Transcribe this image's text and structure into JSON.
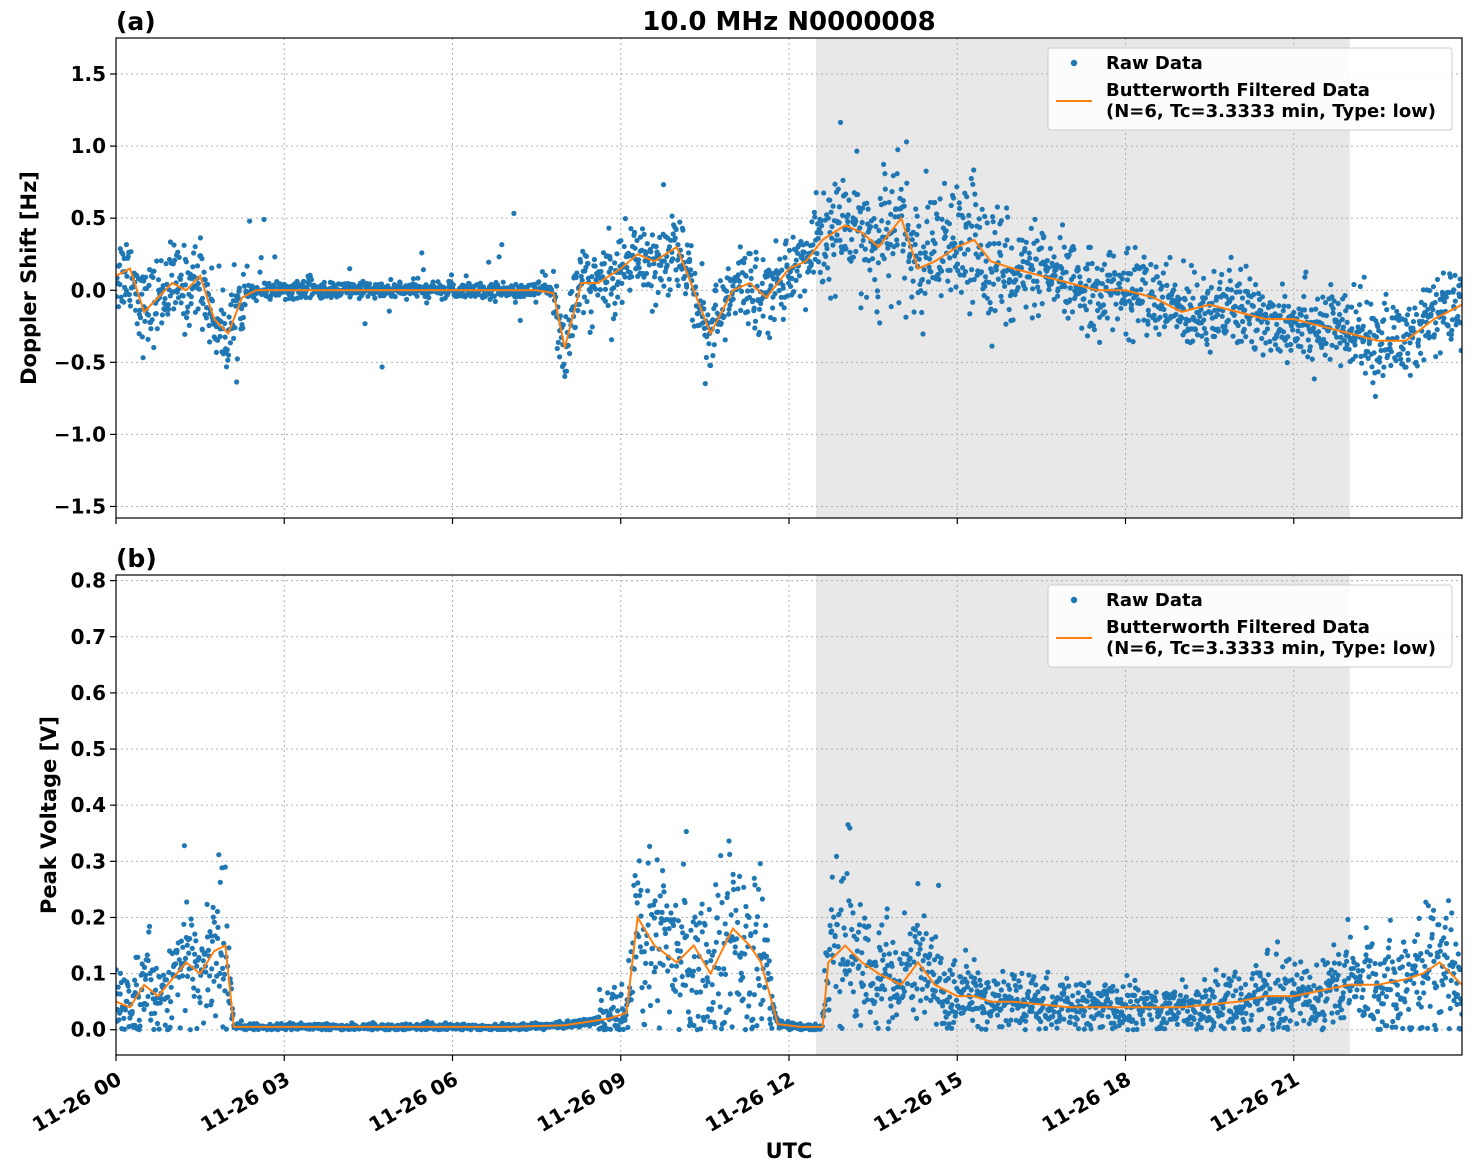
{
  "chart_data": [
    {
      "type": "scatter",
      "panel_label": "(a)",
      "title": "10.0 MHz N0000008",
      "ylabel": "Doppler Shift [Hz]",
      "xlabel": "",
      "xlim": [
        0,
        24
      ],
      "ylim": [
        -1.58,
        1.75
      ],
      "yticks": [
        -1.5,
        -1.0,
        -0.5,
        0.0,
        0.5,
        1.0,
        1.5
      ],
      "ytick_labels": [
        "−1.5",
        "−1.0",
        "−0.5",
        "0.0",
        "0.5",
        "1.0",
        "1.5"
      ],
      "xticks": [
        0,
        3,
        6,
        9,
        12,
        15,
        18,
        21
      ],
      "grid": true,
      "legend_position": "top-right",
      "shaded_region": [
        12.48,
        22.0
      ],
      "series": [
        {
          "name": "Raw Data",
          "style": "dots",
          "x": [
            0,
            0.25,
            0.5,
            0.75,
            1,
            1.25,
            1.5,
            1.75,
            2,
            2.25,
            2.5,
            3,
            4,
            5,
            6,
            7,
            7.5,
            7.8,
            8,
            8.3,
            8.6,
            9,
            9.3,
            9.6,
            10,
            10.3,
            10.6,
            11,
            11.3,
            11.6,
            12,
            12.3,
            12.6,
            13,
            13.3,
            13.6,
            14,
            14.3,
            14.6,
            15,
            15.3,
            15.6,
            16,
            16.5,
            17,
            17.5,
            18,
            18.5,
            19,
            19.5,
            20,
            20.5,
            21,
            21.5,
            22,
            22.5,
            23,
            23.5,
            24
          ],
          "y": [
            0.1,
            0.15,
            -0.15,
            -0.05,
            0.05,
            0.0,
            0.1,
            -0.2,
            -0.3,
            -0.05,
            0.0,
            0.0,
            0.0,
            0.0,
            0.0,
            0.0,
            0.0,
            -0.02,
            -0.4,
            0.05,
            0.05,
            0.15,
            0.25,
            0.2,
            0.3,
            0.0,
            -0.3,
            0.0,
            0.05,
            -0.05,
            0.15,
            0.2,
            0.35,
            0.45,
            0.4,
            0.3,
            0.5,
            0.15,
            0.2,
            0.3,
            0.35,
            0.2,
            0.15,
            0.1,
            0.05,
            0.0,
            0.0,
            -0.05,
            -0.15,
            -0.1,
            -0.15,
            -0.2,
            -0.2,
            -0.25,
            -0.3,
            -0.35,
            -0.35,
            -0.2,
            -0.1
          ]
        },
        {
          "name": "Butterworth Filtered Data\n(N=6, Tc=3.3333 min, Type: low)",
          "style": "line",
          "x": [
            0,
            0.25,
            0.5,
            0.75,
            1,
            1.25,
            1.5,
            1.75,
            2,
            2.25,
            2.5,
            3,
            4,
            5,
            6,
            7,
            7.5,
            7.8,
            8,
            8.3,
            8.6,
            9,
            9.3,
            9.6,
            10,
            10.3,
            10.6,
            11,
            11.3,
            11.6,
            12,
            12.3,
            12.6,
            13,
            13.3,
            13.6,
            14,
            14.3,
            14.6,
            15,
            15.3,
            15.6,
            16,
            16.5,
            17,
            17.5,
            18,
            18.5,
            19,
            19.5,
            20,
            20.5,
            21,
            21.5,
            22,
            22.5,
            23,
            23.5,
            24
          ],
          "y": [
            0.1,
            0.15,
            -0.15,
            -0.05,
            0.05,
            0.0,
            0.1,
            -0.2,
            -0.3,
            -0.05,
            0.0,
            0.0,
            0.0,
            0.0,
            0.0,
            0.0,
            0.0,
            -0.02,
            -0.4,
            0.05,
            0.05,
            0.15,
            0.25,
            0.2,
            0.3,
            0.0,
            -0.3,
            0.0,
            0.05,
            -0.05,
            0.15,
            0.2,
            0.35,
            0.45,
            0.4,
            0.3,
            0.5,
            0.15,
            0.2,
            0.3,
            0.35,
            0.2,
            0.15,
            0.1,
            0.05,
            0.0,
            0.0,
            -0.05,
            -0.15,
            -0.1,
            -0.15,
            -0.2,
            -0.2,
            -0.25,
            -0.3,
            -0.35,
            -0.35,
            -0.2,
            -0.1
          ]
        }
      ]
    },
    {
      "type": "scatter",
      "panel_label": "(b)",
      "title": "",
      "ylabel": "Peak Voltage [V]",
      "xlabel": "UTC",
      "xlim": [
        0,
        24
      ],
      "ylim": [
        -0.045,
        0.81
      ],
      "yticks": [
        0.0,
        0.1,
        0.2,
        0.3,
        0.4,
        0.5,
        0.6,
        0.7,
        0.8
      ],
      "ytick_labels": [
        "0.0",
        "0.1",
        "0.2",
        "0.3",
        "0.4",
        "0.5",
        "0.6",
        "0.7",
        "0.8"
      ],
      "xticks": [
        0,
        3,
        6,
        9,
        12,
        15,
        18,
        21
      ],
      "xtick_labels": [
        "11-26 00",
        "11-26 03",
        "11-26 06",
        "11-26 09",
        "11-26 12",
        "11-26 15",
        "11-26 18",
        "11-26 21"
      ],
      "grid": true,
      "legend_position": "top-right",
      "shaded_region": [
        12.48,
        22.0
      ],
      "series": [
        {
          "name": "Raw Data",
          "style": "dots",
          "x": [
            0,
            0.25,
            0.5,
            0.75,
            1,
            1.25,
            1.5,
            1.75,
            1.95,
            2.1,
            3,
            4,
            5,
            6,
            7,
            8,
            8.8,
            9.1,
            9.3,
            9.6,
            10,
            10.3,
            10.6,
            11,
            11.3,
            11.5,
            11.8,
            12.2,
            12.6,
            12.7,
            13,
            13.3,
            13.6,
            14,
            14.3,
            14.6,
            15,
            15.3,
            15.6,
            16,
            17,
            18,
            19,
            20,
            20.5,
            21,
            21.5,
            22,
            22.5,
            23,
            23.3,
            23.6,
            24
          ],
          "y": [
            0.05,
            0.04,
            0.08,
            0.06,
            0.09,
            0.12,
            0.1,
            0.14,
            0.15,
            0.005,
            0.005,
            0.005,
            0.005,
            0.005,
            0.005,
            0.008,
            0.02,
            0.03,
            0.2,
            0.15,
            0.12,
            0.15,
            0.1,
            0.18,
            0.15,
            0.12,
            0.01,
            0.005,
            0.005,
            0.12,
            0.15,
            0.12,
            0.1,
            0.08,
            0.12,
            0.08,
            0.06,
            0.06,
            0.05,
            0.05,
            0.04,
            0.04,
            0.04,
            0.05,
            0.06,
            0.06,
            0.07,
            0.08,
            0.08,
            0.09,
            0.1,
            0.12,
            0.08
          ]
        },
        {
          "name": "Butterworth Filtered Data\n(N=6, Tc=3.3333 min, Type: low)",
          "style": "line",
          "x": [
            0,
            0.25,
            0.5,
            0.75,
            1,
            1.25,
            1.5,
            1.75,
            1.95,
            2.1,
            3,
            4,
            5,
            6,
            7,
            8,
            8.8,
            9.1,
            9.3,
            9.6,
            10,
            10.3,
            10.6,
            11,
            11.3,
            11.5,
            11.8,
            12.2,
            12.6,
            12.7,
            13,
            13.3,
            13.6,
            14,
            14.3,
            14.6,
            15,
            15.3,
            15.6,
            16,
            17,
            18,
            19,
            20,
            20.5,
            21,
            21.5,
            22,
            22.5,
            23,
            23.3,
            23.6,
            24
          ],
          "y": [
            0.05,
            0.04,
            0.08,
            0.06,
            0.09,
            0.12,
            0.1,
            0.14,
            0.15,
            0.005,
            0.005,
            0.005,
            0.005,
            0.005,
            0.005,
            0.008,
            0.02,
            0.03,
            0.2,
            0.15,
            0.12,
            0.15,
            0.1,
            0.18,
            0.15,
            0.12,
            0.01,
            0.005,
            0.005,
            0.12,
            0.15,
            0.12,
            0.1,
            0.08,
            0.12,
            0.08,
            0.06,
            0.06,
            0.05,
            0.05,
            0.04,
            0.04,
            0.04,
            0.05,
            0.06,
            0.06,
            0.07,
            0.08,
            0.08,
            0.09,
            0.1,
            0.12,
            0.08
          ]
        }
      ]
    }
  ],
  "colors": {
    "raw": "#1f77b4",
    "filtered": "#ff7f0e",
    "shade": "#e8e8e8"
  }
}
